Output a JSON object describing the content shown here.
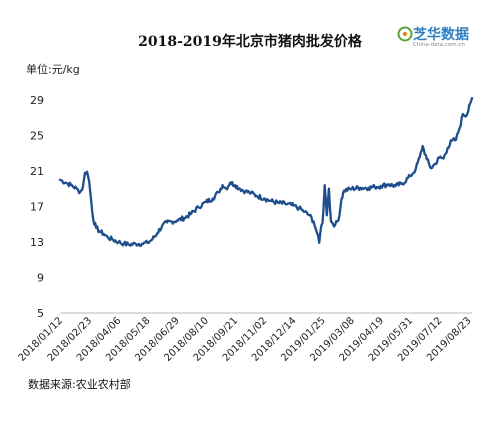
{
  "logo": {
    "cn": "芝华数据",
    "url": "China-data.com.cn",
    "colors": {
      "green": "#5aa33a",
      "orange": "#e98a1f",
      "blue": "#2f7fc1",
      "red": "#d23a2a"
    }
  },
  "chart_data": {
    "type": "line",
    "title": "2018-2019年北京市猪肉批发价格",
    "unit_label": "单位:元/kg",
    "source": "数据来源:农业农村部",
    "ylim": [
      5,
      30
    ],
    "yticks": [
      5,
      9,
      13,
      17,
      21,
      25,
      29
    ],
    "x_range": [
      "2018-01-12",
      "2019-08-28"
    ],
    "xticks": [
      "2018/01/12",
      "2018/02/23",
      "2018/04/06",
      "2018/05/18",
      "2018/06/29",
      "2018/08/10",
      "2018/09/21",
      "2018/11/02",
      "2018/12/14",
      "2019/01/25",
      "2019/03/08",
      "2019/04/19",
      "2019/05/31",
      "2019/07/12",
      "2019/08/23"
    ],
    "grid": false,
    "line_color": "#1f4e8c",
    "series": [
      {
        "points": [
          [
            "2018-01-12",
            20.0
          ],
          [
            "2018-01-20",
            19.7
          ],
          [
            "2018-01-28",
            19.4
          ],
          [
            "2018-02-05",
            19.0
          ],
          [
            "2018-02-10",
            18.6
          ],
          [
            "2018-02-14",
            19.2
          ],
          [
            "2018-02-17",
            20.8
          ],
          [
            "2018-02-20",
            20.9
          ],
          [
            "2018-02-23",
            19.8
          ],
          [
            "2018-02-26",
            17.5
          ],
          [
            "2018-03-01",
            15.5
          ],
          [
            "2018-03-05",
            14.6
          ],
          [
            "2018-03-10",
            14.2
          ],
          [
            "2018-03-16",
            13.9
          ],
          [
            "2018-03-22",
            13.5
          ],
          [
            "2018-03-28",
            13.3
          ],
          [
            "2018-04-06",
            13.0
          ],
          [
            "2018-04-14",
            12.8
          ],
          [
            "2018-04-22",
            12.7
          ],
          [
            "2018-05-01",
            12.8
          ],
          [
            "2018-05-10",
            12.8
          ],
          [
            "2018-05-18",
            12.9
          ],
          [
            "2018-05-25",
            13.3
          ],
          [
            "2018-06-01",
            14.0
          ],
          [
            "2018-06-08",
            14.8
          ],
          [
            "2018-06-15",
            15.2
          ],
          [
            "2018-06-22",
            15.3
          ],
          [
            "2018-06-29",
            15.4
          ],
          [
            "2018-07-10",
            15.7
          ],
          [
            "2018-07-20",
            16.2
          ],
          [
            "2018-07-30",
            16.9
          ],
          [
            "2018-08-10",
            17.5
          ],
          [
            "2018-08-20",
            17.9
          ],
          [
            "2018-08-28",
            18.6
          ],
          [
            "2018-09-03",
            19.4
          ],
          [
            "2018-09-08",
            19.0
          ],
          [
            "2018-09-14",
            19.7
          ],
          [
            "2018-09-21",
            19.4
          ],
          [
            "2018-09-28",
            19.0
          ],
          [
            "2018-10-06",
            18.7
          ],
          [
            "2018-10-14",
            18.5
          ],
          [
            "2018-10-22",
            18.2
          ],
          [
            "2018-11-02",
            17.9
          ],
          [
            "2018-11-12",
            17.6
          ],
          [
            "2018-11-22",
            17.4
          ],
          [
            "2018-12-02",
            17.3
          ],
          [
            "2018-12-14",
            17.1
          ],
          [
            "2018-12-22",
            16.8
          ],
          [
            "2018-12-30",
            16.4
          ],
          [
            "2019-01-06",
            16.0
          ],
          [
            "2019-01-12",
            15.3
          ],
          [
            "2019-01-17",
            14.0
          ],
          [
            "2019-01-20",
            12.9
          ],
          [
            "2019-01-23",
            14.8
          ],
          [
            "2019-01-25",
            15.2
          ],
          [
            "2019-01-28",
            19.4
          ],
          [
            "2019-01-31",
            16.0
          ],
          [
            "2019-02-03",
            19.0
          ],
          [
            "2019-02-06",
            15.3
          ],
          [
            "2019-02-12",
            14.9
          ],
          [
            "2019-02-17",
            15.5
          ],
          [
            "2019-02-21",
            17.8
          ],
          [
            "2019-02-25",
            18.8
          ],
          [
            "2019-03-08",
            19.0
          ],
          [
            "2019-03-20",
            19.1
          ],
          [
            "2019-04-01",
            19.1
          ],
          [
            "2019-04-10",
            19.2
          ],
          [
            "2019-04-19",
            19.3
          ],
          [
            "2019-04-30",
            19.5
          ],
          [
            "2019-05-10",
            19.3
          ],
          [
            "2019-05-20",
            19.6
          ],
          [
            "2019-05-31",
            20.4
          ],
          [
            "2019-06-08",
            21.2
          ],
          [
            "2019-06-14",
            22.6
          ],
          [
            "2019-06-18",
            23.8
          ],
          [
            "2019-06-24",
            22.3
          ],
          [
            "2019-06-30",
            21.3
          ],
          [
            "2019-07-06",
            21.8
          ],
          [
            "2019-07-12",
            22.5
          ],
          [
            "2019-07-18",
            22.4
          ],
          [
            "2019-07-24",
            23.6
          ],
          [
            "2019-07-30",
            24.4
          ],
          [
            "2019-08-05",
            24.5
          ],
          [
            "2019-08-10",
            25.8
          ],
          [
            "2019-08-15",
            27.4
          ],
          [
            "2019-08-20",
            27.2
          ],
          [
            "2019-08-24",
            28.4
          ],
          [
            "2019-08-28",
            29.2
          ]
        ]
      }
    ]
  }
}
